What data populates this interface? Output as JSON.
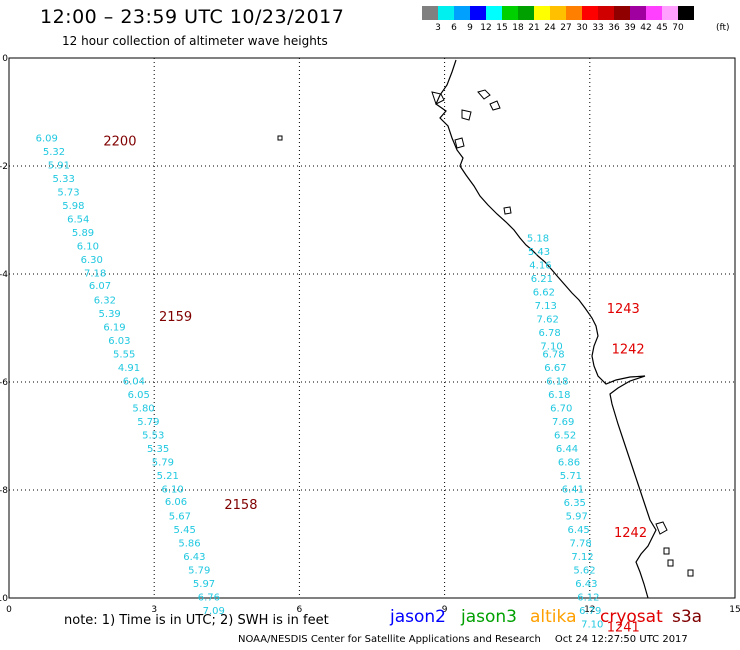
{
  "header": {
    "title": "12:00 – 23:59 UTC 10/23/2017",
    "subtitle": "12 hour collection of altimeter wave heights"
  },
  "legend": {
    "unit": "(ft)",
    "ticks": [
      "3",
      "6",
      "9",
      "12",
      "15",
      "18",
      "21",
      "24",
      "27",
      "30",
      "33",
      "36",
      "39",
      "42",
      "45",
      "70"
    ],
    "colors": [
      "#808080",
      "#00f0f0",
      "#00a0ff",
      "#0000ff",
      "#00ffff",
      "#00d000",
      "#00a000",
      "#ffff00",
      "#ffc000",
      "#ff8000",
      "#ff0000",
      "#d00000",
      "#900000",
      "#a000a0",
      "#ff40ff",
      "#ffa0ff",
      "#000000"
    ]
  },
  "map": {
    "x_ticks": [
      "0",
      "3",
      "6",
      "9",
      "12",
      "15"
    ],
    "y_ticks": [
      "0",
      "-2",
      "-4",
      "-6",
      "-8",
      "-10"
    ],
    "x_range": [
      0,
      15
    ],
    "y_range": [
      -10,
      0
    ],
    "wave_color": "#20c8e0",
    "time_color_west": "#800000",
    "time_color_east": "#e00000",
    "track_west": [
      {
        "lon": 0.55,
        "lat": -1.55,
        "swh": "6.09"
      },
      {
        "lon": 0.7,
        "lat": -1.8,
        "swh": "5.32"
      },
      {
        "lon": 0.8,
        "lat": -2.05,
        "swh": "5.91"
      },
      {
        "lon": 0.9,
        "lat": -2.3,
        "swh": "5.33"
      },
      {
        "lon": 1.0,
        "lat": -2.55,
        "swh": "5.73"
      },
      {
        "lon": 1.1,
        "lat": -2.8,
        "swh": "5.98"
      },
      {
        "lon": 1.2,
        "lat": -3.05,
        "swh": "6.54"
      },
      {
        "lon": 1.3,
        "lat": -3.3,
        "swh": "5.89"
      },
      {
        "lon": 1.4,
        "lat": -3.55,
        "swh": "6.10"
      },
      {
        "lon": 1.48,
        "lat": -3.8,
        "swh": "6.30"
      },
      {
        "lon": 1.55,
        "lat": -4.05,
        "swh": "7.18"
      },
      {
        "lon": 1.65,
        "lat": -4.28,
        "swh": "6.07"
      },
      {
        "lon": 1.75,
        "lat": -4.55,
        "swh": "6.32"
      },
      {
        "lon": 1.85,
        "lat": -4.8,
        "swh": "5.39"
      },
      {
        "lon": 1.95,
        "lat": -5.05,
        "swh": "6.19"
      },
      {
        "lon": 2.05,
        "lat": -5.3,
        "swh": "6.03"
      },
      {
        "lon": 2.15,
        "lat": -5.55,
        "swh": "5.55"
      },
      {
        "lon": 2.25,
        "lat": -5.8,
        "swh": "4.91"
      },
      {
        "lon": 2.35,
        "lat": -6.05,
        "swh": "6.04"
      },
      {
        "lon": 2.45,
        "lat": -6.3,
        "swh": "6.05"
      },
      {
        "lon": 2.55,
        "lat": -6.55,
        "swh": "5.80"
      },
      {
        "lon": 2.65,
        "lat": -6.8,
        "swh": "5.79"
      },
      {
        "lon": 2.75,
        "lat": -7.05,
        "swh": "5.53"
      },
      {
        "lon": 2.85,
        "lat": -7.3,
        "swh": "5.35"
      },
      {
        "lon": 2.95,
        "lat": -7.55,
        "swh": "5.79"
      },
      {
        "lon": 3.05,
        "lat": -7.8,
        "swh": "5.21"
      },
      {
        "lon": 3.15,
        "lat": -8.05,
        "swh": "6.10"
      },
      {
        "lon": 3.22,
        "lat": -8.28,
        "swh": "6.06"
      },
      {
        "lon": 3.3,
        "lat": -8.55,
        "swh": "5.67"
      },
      {
        "lon": 3.4,
        "lat": -8.8,
        "swh": "5.45"
      },
      {
        "lon": 3.5,
        "lat": -9.05,
        "swh": "5.86"
      },
      {
        "lon": 3.6,
        "lat": -9.3,
        "swh": "6.43"
      },
      {
        "lon": 3.7,
        "lat": -9.55,
        "swh": "5.79"
      },
      {
        "lon": 3.8,
        "lat": -9.8,
        "swh": "5.97"
      },
      {
        "lon": 3.9,
        "lat": -10.05,
        "swh": "6.76"
      },
      {
        "lon": 4.0,
        "lat": -10.3,
        "swh": "7.09"
      }
    ],
    "track_east": [
      {
        "lon": 10.7,
        "lat": -3.4,
        "swh": "5.18"
      },
      {
        "lon": 10.72,
        "lat": -3.65,
        "swh": "5.43"
      },
      {
        "lon": 10.75,
        "lat": -3.9,
        "swh": "4.16"
      },
      {
        "lon": 10.78,
        "lat": -4.15,
        "swh": "6.21"
      },
      {
        "lon": 10.82,
        "lat": -4.4,
        "swh": "6.62"
      },
      {
        "lon": 10.86,
        "lat": -4.65,
        "swh": "7.13"
      },
      {
        "lon": 10.9,
        "lat": -4.9,
        "swh": "7.62"
      },
      {
        "lon": 10.94,
        "lat": -5.15,
        "swh": "6.78"
      },
      {
        "lon": 10.98,
        "lat": -5.4,
        "swh": "7.10"
      },
      {
        "lon": 11.02,
        "lat": -5.55,
        "swh": "6.78"
      },
      {
        "lon": 11.06,
        "lat": -5.8,
        "swh": "6.67"
      },
      {
        "lon": 11.1,
        "lat": -6.05,
        "swh": "6.18"
      },
      {
        "lon": 11.14,
        "lat": -6.3,
        "swh": "6.18"
      },
      {
        "lon": 11.18,
        "lat": -6.55,
        "swh": "6.70"
      },
      {
        "lon": 11.22,
        "lat": -6.8,
        "swh": "7.69"
      },
      {
        "lon": 11.26,
        "lat": -7.05,
        "swh": "6.52"
      },
      {
        "lon": 11.3,
        "lat": -7.3,
        "swh": "6.44"
      },
      {
        "lon": 11.34,
        "lat": -7.55,
        "swh": "6.86"
      },
      {
        "lon": 11.38,
        "lat": -7.8,
        "swh": "5.71"
      },
      {
        "lon": 11.42,
        "lat": -8.05,
        "swh": "6.41"
      },
      {
        "lon": 11.46,
        "lat": -8.3,
        "swh": "6.35"
      },
      {
        "lon": 11.5,
        "lat": -8.55,
        "swh": "5.97"
      },
      {
        "lon": 11.54,
        "lat": -8.8,
        "swh": "6.45"
      },
      {
        "lon": 11.58,
        "lat": -9.05,
        "swh": "7.78"
      },
      {
        "lon": 11.62,
        "lat": -9.3,
        "swh": "7.12"
      },
      {
        "lon": 11.66,
        "lat": -9.55,
        "swh": "5.62"
      },
      {
        "lon": 11.7,
        "lat": -9.8,
        "swh": "6.43"
      },
      {
        "lon": 11.74,
        "lat": -10.05,
        "swh": "6.12"
      },
      {
        "lon": 11.78,
        "lat": -10.3,
        "swh": "6.79"
      },
      {
        "lon": 11.82,
        "lat": -10.55,
        "swh": "7.10"
      }
    ],
    "time_labels": [
      {
        "lon": 1.95,
        "lat": -1.55,
        "text": "2200",
        "side": "west"
      },
      {
        "lon": 3.1,
        "lat": -4.8,
        "text": "2159",
        "side": "west"
      },
      {
        "lon": 4.45,
        "lat": -8.28,
        "text": "2158",
        "side": "west"
      },
      {
        "lon": 12.35,
        "lat": -4.65,
        "text": "1243",
        "side": "east"
      },
      {
        "lon": 12.45,
        "lat": -5.4,
        "text": "1242",
        "side": "east"
      },
      {
        "lon": 12.5,
        "lat": -8.8,
        "text": "1242",
        "side": "east"
      },
      {
        "lon": 12.35,
        "lat": -10.55,
        "text": "1241",
        "side": "east"
      }
    ]
  },
  "footer_legend": {
    "note": "note: 1) Time is in UTC; 2) SWH is in feet",
    "satellites": [
      {
        "name": "jason2",
        "color": "#0000ff"
      },
      {
        "name": "jason3",
        "color": "#00a000"
      },
      {
        "name": "altika",
        "color": "#ffa000"
      },
      {
        "name": "cryosat",
        "color": "#e00000"
      },
      {
        "name": "s3a",
        "color": "#800000"
      }
    ]
  },
  "credits": {
    "agency": "NOAA/NESDIS Center for Satellite Applications and Research",
    "timestamp": "Oct 24 12:27:50 UTC 2017"
  }
}
